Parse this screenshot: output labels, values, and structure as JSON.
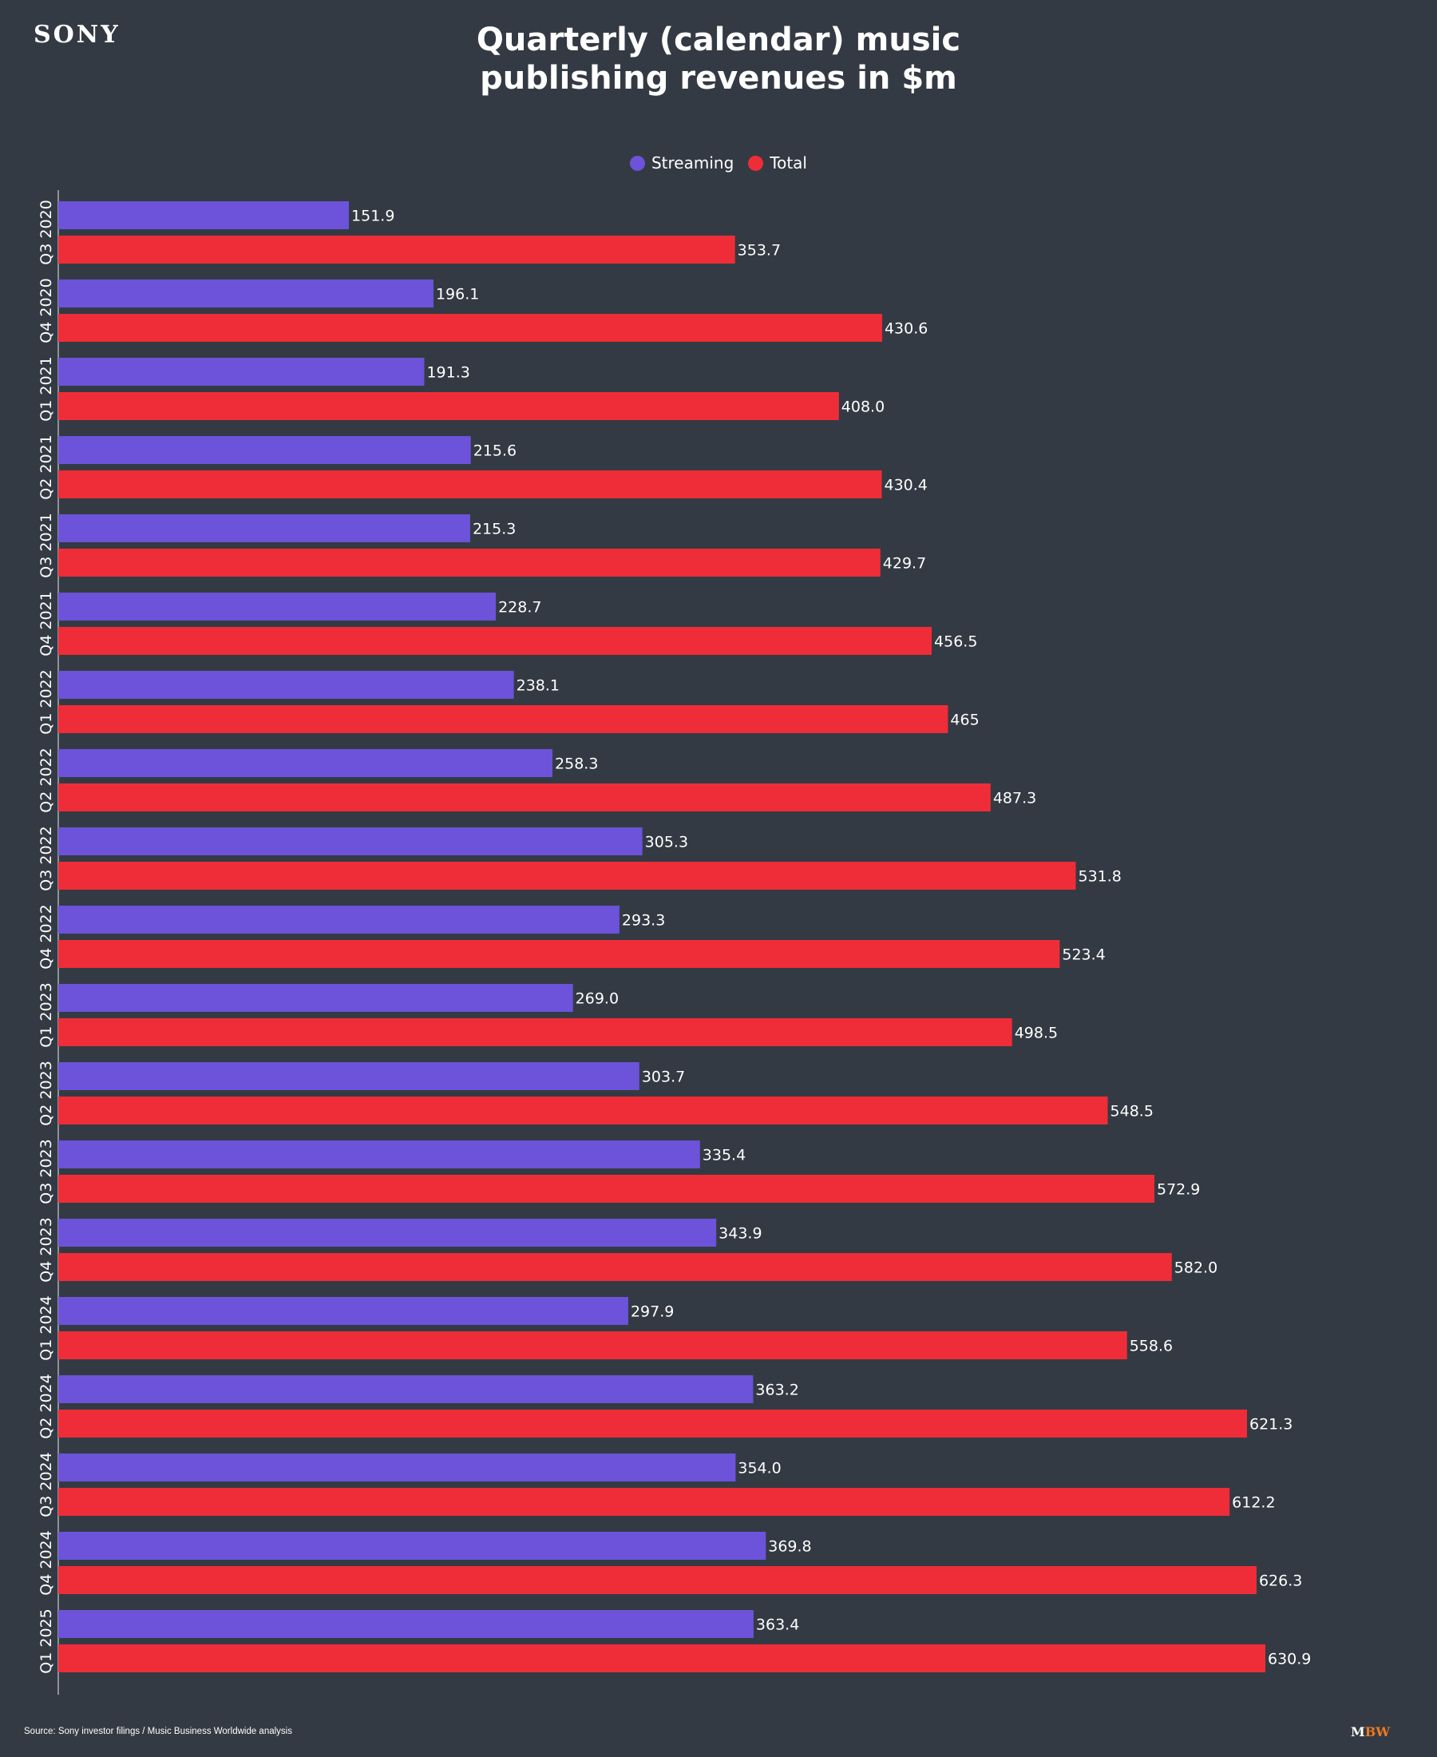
{
  "header": {
    "brand_logo": "SONY",
    "title_line1": "Quarterly (calendar) music",
    "title_line2": "publishing revenues in $m"
  },
  "footer": {
    "source": "Source: Sony investor filings / Music Business Worldwide analysis",
    "logo_m": "M",
    "logo_bw": "BW"
  },
  "colors": {
    "background": "#343a43",
    "streaming": "#6c53da",
    "total": "#ef2d38",
    "text": "#ffffff",
    "mbw_accent": "#f0791e"
  },
  "chart_data": {
    "type": "bar",
    "orientation": "horizontal",
    "title": "Quarterly (calendar) music publishing revenues in $m",
    "xlabel": "",
    "ylabel": "",
    "legend_position": "top-center",
    "grid": false,
    "xlim": [
      0,
      700
    ],
    "categories": [
      "Q3 2020",
      "Q4 2020",
      "Q1 2021",
      "Q2 2021",
      "Q3 2021",
      "Q4 2021",
      "Q1 2022",
      "Q2 2022",
      "Q3 2022",
      "Q4 2022",
      "Q1 2023",
      "Q2 2023",
      "Q3 2023",
      "Q4 2023",
      "Q1 2024",
      "Q2 2024",
      "Q3 2024",
      "Q4 2024",
      "Q1 2025"
    ],
    "series": [
      {
        "name": "Streaming",
        "color": "#6c53da",
        "values": [
          151.9,
          196.1,
          191.3,
          215.6,
          215.3,
          228.7,
          238.1,
          258.3,
          305.3,
          293.3,
          269.0,
          303.7,
          335.4,
          343.9,
          297.9,
          363.2,
          354.0,
          369.8,
          363.4
        ],
        "labels": [
          "151.9",
          "196.1",
          "191.3",
          "215.6",
          "215.3",
          "228.7",
          "238.1",
          "258.3",
          "305.3",
          "293.3",
          "269.0",
          "303.7",
          "335.4",
          "343.9",
          "297.9",
          "363.2",
          "354.0",
          "369.8",
          "363.4"
        ]
      },
      {
        "name": "Total",
        "color": "#ef2d38",
        "values": [
          353.7,
          430.6,
          408.0,
          430.4,
          429.7,
          456.5,
          465,
          487.3,
          531.8,
          523.4,
          498.5,
          548.5,
          572.9,
          582.0,
          558.6,
          621.3,
          612.2,
          626.3,
          630.9
        ],
        "labels": [
          "353.7",
          "430.6",
          "408.0",
          "430.4",
          "429.7",
          "456.5",
          "465",
          "487.3",
          "531.8",
          "523.4",
          "498.5",
          "548.5",
          "572.9",
          "582.0",
          "558.6",
          "621.3",
          "612.2",
          "626.3",
          "630.9"
        ]
      }
    ]
  }
}
